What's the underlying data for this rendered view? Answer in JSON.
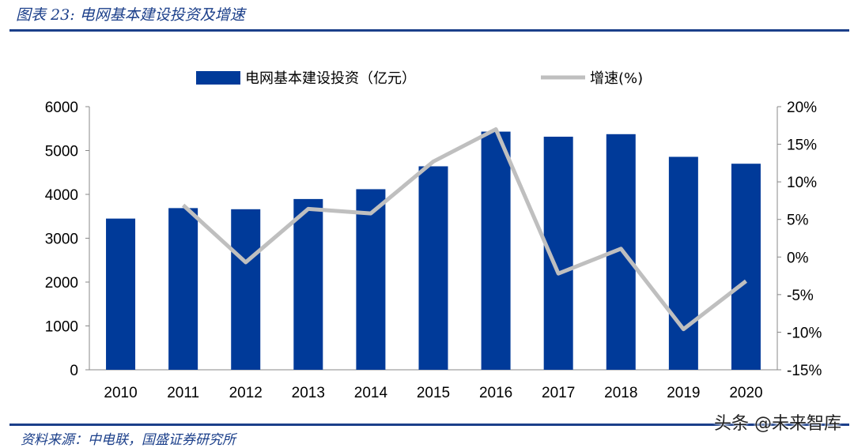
{
  "header": {
    "title": "图表 23:  电网基本建设投资及增速"
  },
  "footer": {
    "source": "资料来源：中电联，国盛证券研究所"
  },
  "watermark": "头条 @未来智库",
  "colors": {
    "bar": "#003a99",
    "line": "#bfbfbf",
    "rule": "#1b3f8a"
  },
  "chart_data": {
    "type": "bar+line",
    "categories": [
      "2010",
      "2011",
      "2012",
      "2013",
      "2014",
      "2015",
      "2016",
      "2017",
      "2018",
      "2019",
      "2020"
    ],
    "series": [
      {
        "name": "电网基本建设投资（亿元）",
        "type": "bar",
        "axis": "left",
        "values": [
          3448,
          3687,
          3661,
          3894,
          4118,
          4640,
          5431,
          5315,
          5373,
          4856,
          4699
        ]
      },
      {
        "name": "增速(%)",
        "type": "line",
        "axis": "right",
        "values": [
          null,
          6.9,
          -0.7,
          6.4,
          5.8,
          12.7,
          17.0,
          -2.2,
          1.1,
          -9.6,
          -3.2
        ]
      }
    ],
    "left_axis": {
      "ylim": [
        0,
        6000
      ],
      "ticks": [
        0,
        1000,
        2000,
        3000,
        4000,
        5000,
        6000
      ]
    },
    "right_axis": {
      "ylim": [
        -15,
        20
      ],
      "ticks": [
        "-15%",
        "-10%",
        "-5%",
        "0%",
        "5%",
        "10%",
        "15%",
        "20%"
      ],
      "tick_values": [
        -15,
        -10,
        -5,
        0,
        5,
        10,
        15,
        20
      ]
    },
    "legend": "top",
    "grid": false
  }
}
